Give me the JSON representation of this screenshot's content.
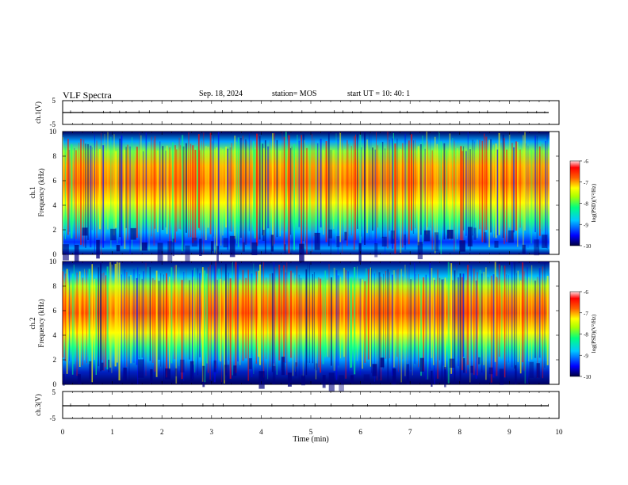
{
  "header": {
    "title": "VLF Spectra",
    "date": "Sep. 18, 2024",
    "station": "station= MOS",
    "start_ut": "start  UT =   10: 40: 1"
  },
  "chart_data": [
    {
      "type": "line",
      "panel": "ch1-voltage",
      "ylabel": "ch.1(V)",
      "ylim": [
        -5,
        5
      ],
      "yticks": [
        "5",
        "-5"
      ],
      "series": [
        {
          "values": [
            0,
            0
          ]
        }
      ]
    },
    {
      "type": "heatmap",
      "panel": "ch1-spectrogram",
      "ylabel": "ch.1\nFrequency (kHz)",
      "ylim": [
        0,
        10
      ],
      "yticks": [
        "0",
        "2",
        "4",
        "6",
        "8",
        "10"
      ],
      "colorbar": {
        "label": "log(PSD)(V²/Hz)",
        "range": [
          -10,
          -6
        ],
        "ticks": [
          "-6",
          "-7",
          "-8",
          "-9",
          "-10"
        ]
      },
      "band_kHz": [
        1.5,
        9
      ],
      "peak_kHz": 6
    },
    {
      "type": "heatmap",
      "panel": "ch2-spectrogram",
      "ylabel": "ch.2\nFrequency (kHz)",
      "ylim": [
        0,
        10
      ],
      "yticks": [
        "0",
        "2",
        "4",
        "6",
        "8",
        "10"
      ],
      "colorbar": {
        "label": "log(PSD)(V²/Hz)",
        "range": [
          -10,
          -6
        ],
        "ticks": [
          "-6",
          "-7",
          "-8",
          "-9",
          "-10"
        ]
      },
      "band_kHz": [
        2.5,
        9
      ],
      "peak_kHz": 6.2
    },
    {
      "type": "line",
      "panel": "ch3-voltage",
      "ylabel": "ch.3(V)",
      "ylim": [
        -5,
        5
      ],
      "yticks": [
        "5",
        "-5"
      ],
      "series": [
        {
          "values": [
            0,
            0
          ]
        }
      ]
    }
  ],
  "x_axis": {
    "label": "Time (min)",
    "range": [
      0,
      10
    ],
    "ticks": [
      "0",
      "1",
      "2",
      "3",
      "4",
      "5",
      "6",
      "7",
      "8",
      "9",
      "10"
    ],
    "data_end_min": 9.8
  },
  "colors": {
    "colormap": [
      "#000080",
      "#0000ff",
      "#00c8ff",
      "#00ff80",
      "#aaff00",
      "#ffff00",
      "#ff8000",
      "#ff0000",
      "#ffffff"
    ]
  }
}
